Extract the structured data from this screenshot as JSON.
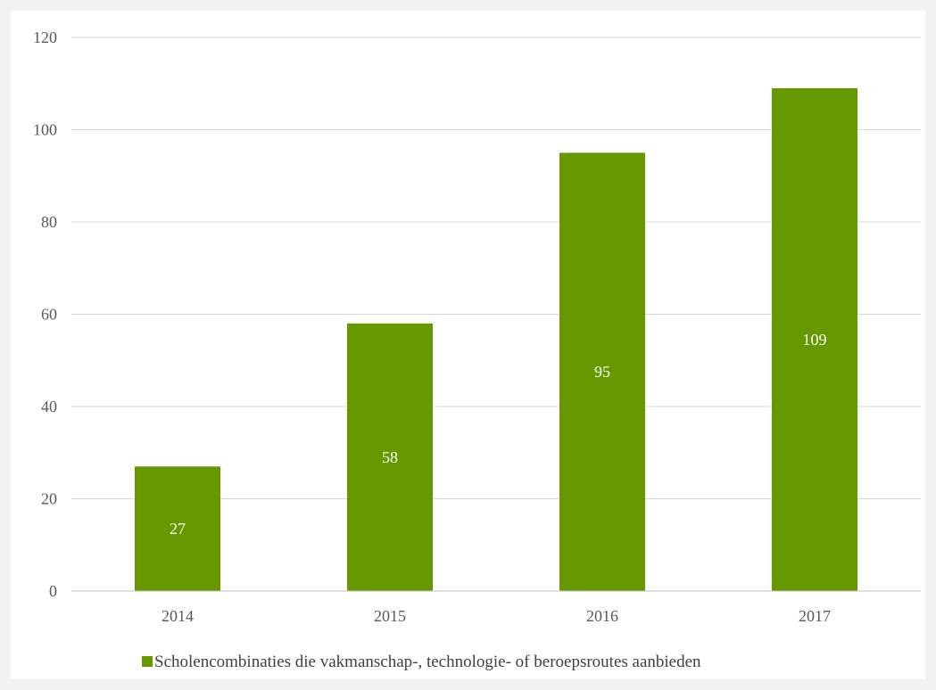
{
  "chart_data": {
    "type": "bar",
    "categories": [
      "2014",
      "2015",
      "2016",
      "2017"
    ],
    "series": [
      {
        "name": "Scholencombinaties die vakmanschap-, technologie- of beroepsroutes aanbieden",
        "values": [
          27,
          58,
          95,
          109
        ],
        "color": "#669900"
      }
    ],
    "ylim": [
      0,
      120
    ],
    "y_ticks": [
      "0",
      "20",
      "40",
      "60",
      "80",
      "100",
      "120"
    ],
    "data_labels": [
      "27",
      "58",
      "95",
      "109"
    ],
    "grid": true,
    "legend_position": "bottom",
    "background_color": "#f2f2f2",
    "plot_background_color": "#ffffff",
    "gridline_color": "#d9d9d9"
  }
}
